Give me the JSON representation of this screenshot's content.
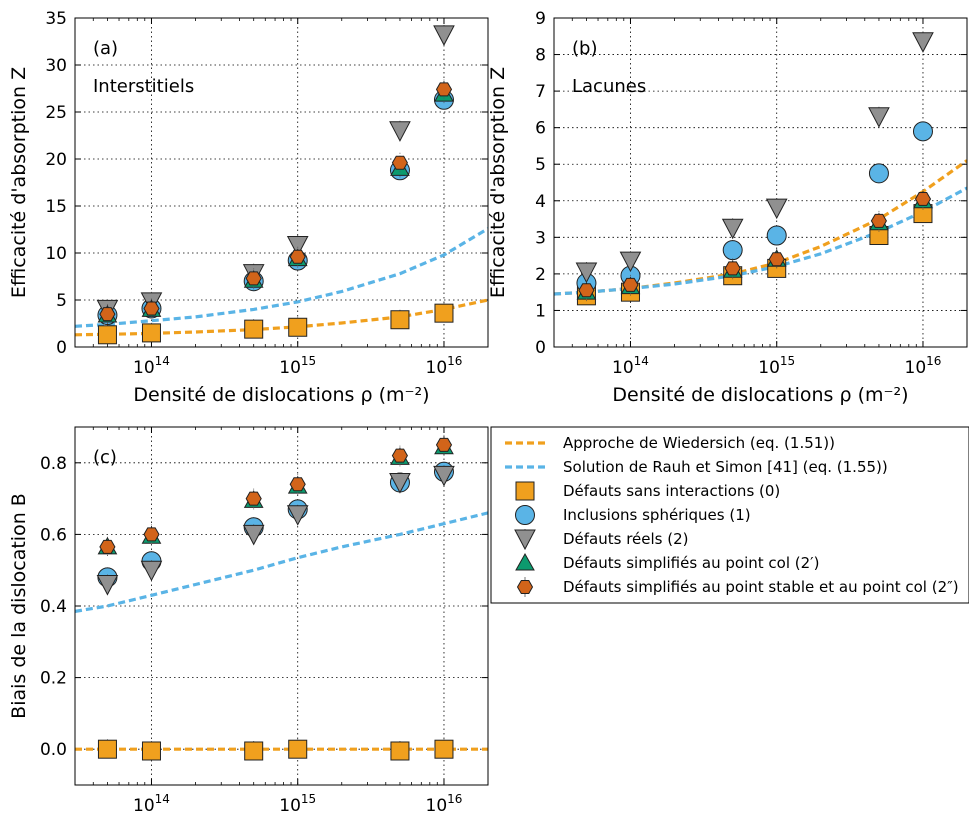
{
  "colors": {
    "wiedersich": "#f0a01e",
    "rauh": "#5ab4e6",
    "sans_interactions": "#f0a01e",
    "inclusions": "#5ab4e6",
    "reels": "#909090",
    "point_col": "#0c9a6e",
    "stable_col": "#d2641a"
  },
  "legend": {
    "items": [
      {
        "key": "wiedersich",
        "label": "Approche de Wiedersich (eq. (1.51))",
        "marker": "dash"
      },
      {
        "key": "rauh",
        "label": "Solution de Rauh et Simon [41] (eq. (1.55))",
        "marker": "dash"
      },
      {
        "key": "sans_interactions",
        "label": "Défauts sans interactions (0)",
        "marker": "square"
      },
      {
        "key": "inclusions",
        "label": "Inclusions sphériques (1)",
        "marker": "circle"
      },
      {
        "key": "reels",
        "label": "Défauts réels (2)",
        "marker": "tri-down"
      },
      {
        "key": "point_col",
        "label": "Défauts simplifiés au point col (2′)",
        "marker": "tri-up"
      },
      {
        "key": "stable_col",
        "label": "Défauts simplifiés au point stable et au point col (2″)",
        "marker": "hexagon"
      }
    ]
  },
  "chart_data": [
    {
      "id": "a",
      "type": "scatter",
      "panel_label": "(a)",
      "annotation": "Interstitiels",
      "xlabel": "Densité de dislocations ρ (m⁻²)",
      "ylabel": "Efficacité d'absorption Z",
      "xscale": "log",
      "xlim": [
        30000000000000.0,
        2e+16
      ],
      "ylim": [
        0,
        35
      ],
      "yticks": [
        "0",
        "5",
        "10",
        "15",
        "20",
        "25",
        "30",
        "35"
      ],
      "xticks": [
        {
          "base": "10",
          "exp": "14",
          "value": 100000000000000.0
        },
        {
          "base": "10",
          "exp": "15",
          "value": 1000000000000000.0
        },
        {
          "base": "10",
          "exp": "16",
          "value": 1e+16
        }
      ],
      "grid": true,
      "x": [
        50000000000000.0,
        100000000000000.0,
        500000000000000.0,
        1000000000000000.0,
        5000000000000000.0,
        1e+16
      ],
      "lines": [
        {
          "key": "wiedersich",
          "x": [
            30000000000000.0,
            50000000000000.0,
            100000000000000.0,
            200000000000000.0,
            500000000000000.0,
            1000000000000000.0,
            2000000000000000.0,
            5000000000000000.0,
            1e+16,
            2e+16
          ],
          "y": [
            1.3,
            1.35,
            1.45,
            1.6,
            1.85,
            2.15,
            2.55,
            3.2,
            4.0,
            5.0
          ]
        },
        {
          "key": "rauh",
          "x": [
            30000000000000.0,
            50000000000000.0,
            100000000000000.0,
            200000000000000.0,
            500000000000000.0,
            1000000000000000.0,
            2000000000000000.0,
            5000000000000000.0,
            1e+16,
            2e+16
          ],
          "y": [
            2.2,
            2.4,
            2.8,
            3.2,
            4.0,
            4.8,
            5.9,
            7.8,
            9.8,
            12.6
          ]
        }
      ],
      "series": [
        {
          "key": "sans_interactions",
          "marker": "square",
          "values": [
            1.3,
            1.5,
            1.9,
            2.1,
            2.9,
            3.6
          ]
        },
        {
          "key": "inclusions",
          "marker": "circle",
          "values": [
            3.4,
            4.1,
            7.0,
            9.2,
            18.8,
            26.3
          ]
        },
        {
          "key": "reels",
          "marker": "tri-down",
          "values": [
            4.0,
            4.8,
            7.8,
            10.8,
            23.0,
            33.2
          ]
        },
        {
          "key": "point_col",
          "marker": "tri-up",
          "values": [
            3.4,
            4.0,
            7.1,
            9.4,
            19.0,
            26.9
          ]
        },
        {
          "key": "stable_col",
          "marker": "hexagon",
          "values": [
            3.5,
            4.1,
            7.3,
            9.6,
            19.6,
            27.4
          ]
        }
      ]
    },
    {
      "id": "b",
      "type": "scatter",
      "panel_label": "(b)",
      "annotation": "Lacunes",
      "xlabel": "Densité de dislocations ρ (m⁻²)",
      "ylabel": "Efficacité d'absorption Z",
      "xscale": "log",
      "xlim": [
        30000000000000.0,
        2e+16
      ],
      "ylim": [
        0,
        9
      ],
      "yticks": [
        "0",
        "1",
        "2",
        "3",
        "4",
        "5",
        "6",
        "7",
        "8",
        "9"
      ],
      "xticks": [
        {
          "base": "10",
          "exp": "14",
          "value": 100000000000000.0
        },
        {
          "base": "10",
          "exp": "15",
          "value": 1000000000000000.0
        },
        {
          "base": "10",
          "exp": "16",
          "value": 1e+16
        }
      ],
      "grid": true,
      "x": [
        50000000000000.0,
        100000000000000.0,
        500000000000000.0,
        1000000000000000.0,
        5000000000000000.0,
        1e+16
      ],
      "lines": [
        {
          "key": "wiedersich",
          "x": [
            30000000000000.0,
            50000000000000.0,
            100000000000000.0,
            200000000000000.0,
            500000000000000.0,
            1000000000000000.0,
            2000000000000000.0,
            5000000000000000.0,
            1e+16,
            2e+16
          ],
          "y": [
            1.45,
            1.5,
            1.6,
            1.75,
            2.0,
            2.3,
            2.75,
            3.5,
            4.25,
            5.1
          ]
        },
        {
          "key": "rauh",
          "x": [
            30000000000000.0,
            50000000000000.0,
            100000000000000.0,
            200000000000000.0,
            500000000000000.0,
            1000000000000000.0,
            2000000000000000.0,
            5000000000000000.0,
            1e+16,
            2e+16
          ],
          "y": [
            1.45,
            1.5,
            1.6,
            1.72,
            1.95,
            2.2,
            2.55,
            3.15,
            3.7,
            4.35
          ]
        }
      ],
      "series": [
        {
          "key": "sans_interactions",
          "marker": "square",
          "values": [
            1.4,
            1.5,
            1.95,
            2.15,
            3.05,
            3.65
          ]
        },
        {
          "key": "inclusions",
          "marker": "circle",
          "values": [
            1.75,
            1.95,
            2.65,
            3.05,
            4.75,
            5.9
          ]
        },
        {
          "key": "reels",
          "marker": "tri-down",
          "values": [
            2.05,
            2.35,
            3.25,
            3.8,
            6.3,
            8.35
          ]
        },
        {
          "key": "point_col",
          "marker": "tri-up",
          "values": [
            1.5,
            1.65,
            2.1,
            2.4,
            3.4,
            4.0
          ]
        },
        {
          "key": "stable_col",
          "marker": "hexagon",
          "values": [
            1.55,
            1.7,
            2.15,
            2.4,
            3.45,
            4.05
          ]
        }
      ]
    },
    {
      "id": "c",
      "type": "scatter",
      "panel_label": "(c)",
      "annotation": "",
      "xlabel": "Densité de dislocations ρ (m⁻²)",
      "ylabel": "Biais de la dislocation B",
      "xscale": "log",
      "xlim": [
        30000000000000.0,
        2e+16
      ],
      "ylim": [
        -0.1,
        0.9
      ],
      "yticks": [
        "0.0",
        "0.2",
        "0.4",
        "0.6",
        "0.8"
      ],
      "xticks": [
        {
          "base": "10",
          "exp": "14",
          "value": 100000000000000.0
        },
        {
          "base": "10",
          "exp": "15",
          "value": 1000000000000000.0
        },
        {
          "base": "10",
          "exp": "16",
          "value": 1e+16
        }
      ],
      "grid": true,
      "x": [
        50000000000000.0,
        100000000000000.0,
        500000000000000.0,
        1000000000000000.0,
        5000000000000000.0,
        1e+16
      ],
      "lines": [
        {
          "key": "wiedersich",
          "x": [
            30000000000000.0,
            2e+16
          ],
          "y": [
            0.0,
            0.0
          ]
        },
        {
          "key": "rauh",
          "x": [
            30000000000000.0,
            50000000000000.0,
            100000000000000.0,
            200000000000000.0,
            500000000000000.0,
            1000000000000000.0,
            2000000000000000.0,
            5000000000000000.0,
            1e+16,
            2e+16
          ],
          "y": [
            0.385,
            0.4,
            0.43,
            0.46,
            0.5,
            0.535,
            0.565,
            0.6,
            0.63,
            0.66
          ]
        }
      ],
      "series": [
        {
          "key": "sans_interactions",
          "marker": "square",
          "values": [
            0.0,
            -0.005,
            -0.005,
            0.0,
            -0.005,
            0.0
          ]
        },
        {
          "key": "inclusions",
          "marker": "circle",
          "values": [
            0.48,
            0.525,
            0.62,
            0.67,
            0.745,
            0.775
          ]
        },
        {
          "key": "reels",
          "marker": "tri-down",
          "values": [
            0.46,
            0.5,
            0.6,
            0.655,
            0.745,
            0.765
          ]
        },
        {
          "key": "point_col",
          "marker": "tri-up",
          "values": [
            0.565,
            0.595,
            0.695,
            0.735,
            0.815,
            0.845
          ]
        },
        {
          "key": "stable_col",
          "marker": "hexagon",
          "values": [
            0.565,
            0.6,
            0.7,
            0.74,
            0.82,
            0.85
          ]
        }
      ]
    }
  ]
}
